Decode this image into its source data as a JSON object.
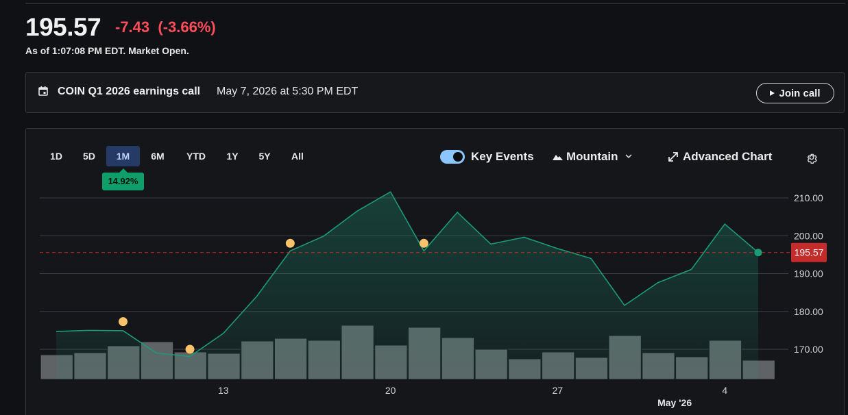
{
  "quote": {
    "price": "195.57",
    "change": "-7.43  (-3.66%)",
    "as_of": "As of 1:07:08 PM EDT. Market Open."
  },
  "earnings": {
    "title": "COIN Q1 2026 earnings call",
    "date": "May 7, 2026 at 5:30 PM EDT",
    "join_label": "Join call"
  },
  "toolbar": {
    "ranges": [
      "1D",
      "5D",
      "1M",
      "6M",
      "YTD",
      "1Y",
      "5Y",
      "All"
    ],
    "active_range": "1M",
    "range_change": "14.92%",
    "key_events_label": "Key Events",
    "key_events_on": true,
    "chart_type_label": "Mountain",
    "advanced_label": "Advanced Chart",
    "icons": [
      "calendar-icon",
      "play-icon",
      "toggle-switch",
      "mountain-icon",
      "chevron-down-icon",
      "expand-arrow-icon",
      "gear-icon"
    ]
  },
  "colors": {
    "up": "#0f9d6a",
    "down": "#ff4d5a",
    "line": "#1c9b78",
    "event_dot": "#f8c36b",
    "last_price_tag": "#c42b2b",
    "volume_bar": "#5f6366",
    "active_range_bg": "#263a66"
  },
  "chart_data": {
    "type": "area",
    "ylim": [
      163,
      214
    ],
    "yticks": [
      170,
      180,
      190,
      200,
      210
    ],
    "ytick_labels": [
      "170.00",
      "180.00",
      "190.00",
      "200.00",
      "210.00"
    ],
    "x": [
      "Apr 6",
      "Apr 7",
      "Apr 8",
      "Apr 9",
      "Apr 10",
      "Apr 13",
      "Apr 14",
      "Apr 15",
      "Apr 16",
      "Apr 17",
      "Apr 20",
      "Apr 21",
      "Apr 22",
      "Apr 23",
      "Apr 24",
      "Apr 27",
      "Apr 28",
      "Apr 29",
      "Apr 30",
      "May 1",
      "May 4",
      "May 5"
    ],
    "xtick_labels": [
      {
        "label": "13",
        "index": 5
      },
      {
        "label": "20",
        "index": 10
      },
      {
        "label": "27",
        "index": 15
      },
      {
        "label": "4",
        "index": 20
      }
    ],
    "xtick_sublabel": {
      "label": "May '26",
      "index": 18.5
    },
    "values": [
      174.7,
      175.0,
      174.9,
      169.0,
      168.1,
      174.2,
      184.0,
      196.0,
      199.9,
      206.5,
      211.6,
      196.0,
      206.2,
      197.8,
      199.6,
      196.6,
      194.0,
      181.6,
      187.6,
      191.1,
      203.1,
      195.57
    ],
    "volume_relative": [
      0.36,
      0.39,
      0.49,
      0.55,
      0.4,
      0.38,
      0.56,
      0.6,
      0.57,
      0.79,
      0.5,
      0.76,
      0.61,
      0.44,
      0.3,
      0.4,
      0.32,
      0.64,
      0.39,
      0.33,
      0.57,
      0.28
    ],
    "key_events": [
      {
        "index": 2,
        "value": 177.3
      },
      {
        "index": 4,
        "value": 170.0
      },
      {
        "index": 7,
        "value": 198.0
      },
      {
        "index": 11,
        "value": 198.0
      }
    ],
    "last_price": 195.57,
    "last_price_label": "195.57",
    "grid": true
  }
}
